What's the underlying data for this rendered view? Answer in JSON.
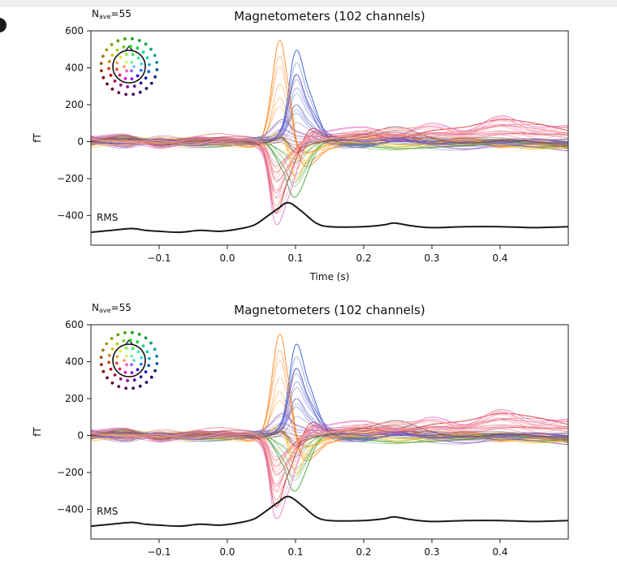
{
  "chart_data": [
    {
      "type": "line",
      "title": "Magnetometers (102 channels)",
      "nave_label": "N",
      "nave_subscript": "ave",
      "nave_value": "=55",
      "xlabel": "Time (s)",
      "ylabel": "fT",
      "rms_label": "RMS",
      "xlim": [
        -0.2,
        0.5
      ],
      "ylim": [
        -560,
        600
      ],
      "x_ticks": [
        -0.1,
        0.0,
        0.1,
        0.2,
        0.3,
        0.4
      ],
      "x_tick_labels": [
        "−0.1",
        "0.0",
        "0.1",
        "0.2",
        "0.3",
        "0.4"
      ],
      "y_ticks": [
        600,
        400,
        200,
        0,
        -200,
        -400
      ],
      "y_tick_labels": [
        "600",
        "400",
        "200",
        "0",
        "−200",
        "−400"
      ],
      "series": [
        {
          "color": "#1f4fd0",
          "x": [
            -0.2,
            -0.15,
            -0.1,
            -0.05,
            0.0,
            0.05,
            0.08,
            0.1,
            0.12,
            0.15,
            0.2,
            0.25,
            0.3,
            0.35,
            0.4,
            0.45,
            0.5
          ],
          "y": [
            5,
            20,
            -10,
            15,
            5,
            0,
            80,
            490,
            280,
            20,
            -20,
            10,
            0,
            -10,
            5,
            10,
            0
          ]
        },
        {
          "color": "#ff7f0e",
          "x": [
            -0.2,
            -0.15,
            -0.1,
            -0.05,
            0.0,
            0.05,
            0.075,
            0.09,
            0.11,
            0.15,
            0.2,
            0.25,
            0.3,
            0.35,
            0.4,
            0.45,
            0.5
          ],
          "y": [
            10,
            -20,
            15,
            5,
            -5,
            20,
            540,
            300,
            -120,
            -40,
            10,
            40,
            -10,
            20,
            -30,
            -10,
            -40
          ]
        },
        {
          "color": "#d62728",
          "x": [
            -0.2,
            -0.15,
            -0.1,
            -0.05,
            0.0,
            0.05,
            0.07,
            0.09,
            0.12,
            0.15,
            0.2,
            0.25,
            0.3,
            0.35,
            0.4,
            0.45,
            0.5
          ],
          "y": [
            0,
            30,
            -20,
            10,
            20,
            -40,
            -380,
            -200,
            60,
            30,
            40,
            20,
            60,
            80,
            120,
            100,
            60
          ]
        },
        {
          "color": "#2ca02c",
          "x": [
            -0.2,
            -0.15,
            -0.1,
            -0.05,
            0.0,
            0.05,
            0.08,
            0.1,
            0.13,
            0.15,
            0.2,
            0.25,
            0.3,
            0.35,
            0.4,
            0.45,
            0.5
          ],
          "y": [
            -10,
            10,
            0,
            -20,
            -10,
            10,
            -150,
            -300,
            -60,
            0,
            -20,
            -40,
            -30,
            -20,
            -10,
            -30,
            -20
          ]
        },
        {
          "color": "#9467bd",
          "x": [
            -0.2,
            -0.15,
            -0.1,
            -0.05,
            0.0,
            0.05,
            0.08,
            0.1,
            0.13,
            0.15,
            0.2,
            0.25,
            0.3,
            0.35,
            0.4,
            0.45,
            0.5
          ],
          "y": [
            30,
            -30,
            20,
            -20,
            10,
            30,
            120,
            60,
            20,
            -10,
            -30,
            10,
            -20,
            -40,
            -20,
            -30,
            -50
          ]
        },
        {
          "color": "#e377c2",
          "x": [
            -0.2,
            -0.15,
            -0.1,
            -0.05,
            0.0,
            0.05,
            0.07,
            0.09,
            0.12,
            0.15,
            0.2,
            0.25,
            0.3,
            0.35,
            0.4,
            0.45,
            0.5
          ],
          "y": [
            20,
            40,
            -30,
            25,
            0,
            -60,
            -440,
            -300,
            20,
            60,
            80,
            40,
            100,
            60,
            140,
            80,
            90
          ]
        },
        {
          "color": "#f5c242",
          "x": [
            -0.2,
            -0.15,
            -0.1,
            -0.05,
            0.0,
            0.05,
            0.08,
            0.1,
            0.12,
            0.15,
            0.2,
            0.25,
            0.3,
            0.35,
            0.4,
            0.45,
            0.5
          ],
          "y": [
            -20,
            10,
            -10,
            0,
            -20,
            0,
            40,
            -200,
            -80,
            -20,
            0,
            -30,
            -10,
            10,
            -20,
            -40,
            -30
          ]
        },
        {
          "color": "#6a5acd",
          "x": [
            -0.2,
            -0.15,
            -0.1,
            -0.05,
            0.0,
            0.05,
            0.08,
            0.1,
            0.12,
            0.15,
            0.2,
            0.25,
            0.3,
            0.35,
            0.4,
            0.45,
            0.5
          ],
          "y": [
            0,
            -10,
            10,
            -10,
            0,
            10,
            60,
            360,
            200,
            40,
            0,
            20,
            -10,
            0,
            -10,
            10,
            -10
          ]
        },
        {
          "color": "#8c564b",
          "x": [
            -0.2,
            -0.15,
            -0.1,
            -0.05,
            0.0,
            0.05,
            0.08,
            0.1,
            0.12,
            0.15,
            0.2,
            0.25,
            0.3,
            0.35,
            0.4,
            0.45,
            0.5
          ],
          "y": [
            -5,
            30,
            -20,
            5,
            10,
            -10,
            20,
            -60,
            -20,
            10,
            40,
            80,
            20,
            -10,
            10,
            0,
            -20
          ]
        },
        {
          "color": "#ff9896",
          "x": [
            -0.2,
            -0.15,
            -0.1,
            -0.05,
            0.0,
            0.05,
            0.07,
            0.09,
            0.12,
            0.15,
            0.2,
            0.25,
            0.3,
            0.35,
            0.4,
            0.45,
            0.5
          ],
          "y": [
            15,
            -5,
            5,
            -15,
            15,
            -20,
            -300,
            -140,
            40,
            20,
            60,
            70,
            80,
            50,
            130,
            60,
            80
          ]
        }
      ],
      "rms": {
        "color": "#1a1a1a",
        "x": [
          -0.2,
          -0.17,
          -0.14,
          -0.12,
          -0.1,
          -0.07,
          -0.04,
          -0.01,
          0.02,
          0.04,
          0.06,
          0.075,
          0.09,
          0.11,
          0.13,
          0.15,
          0.2,
          0.23,
          0.245,
          0.27,
          0.3,
          0.35,
          0.4,
          0.45,
          0.5
        ],
        "y": [
          -490,
          -480,
          -470,
          -480,
          -485,
          -490,
          -480,
          -485,
          -470,
          -450,
          -400,
          -360,
          -330,
          -380,
          -440,
          -460,
          -460,
          -450,
          -440,
          -455,
          -465,
          -460,
          -460,
          -465,
          -460
        ]
      }
    },
    {
      "type": "line",
      "title": "Magnetometers (102 channels)",
      "nave_label": "N",
      "nave_subscript": "ave",
      "nave_value": "=55",
      "ylabel": "fT",
      "rms_label": "RMS",
      "xlim": [
        -0.2,
        0.5
      ],
      "ylim": [
        -560,
        600
      ],
      "x_ticks": [
        -0.1,
        0.0,
        0.1,
        0.2,
        0.3,
        0.4
      ],
      "x_tick_labels": [
        "−0.1",
        "0.0",
        "0.1",
        "0.2",
        "0.3",
        "0.4"
      ],
      "y_ticks": [
        600,
        400,
        200,
        0,
        -200,
        -400
      ],
      "y_tick_labels": [
        "600",
        "400",
        "200",
        "0",
        "−200",
        "−400"
      ],
      "same_series_as_panel": 0
    }
  ]
}
